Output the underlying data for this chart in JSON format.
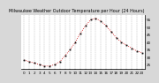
{
  "title": "Milwaukee Weather Outdoor Temperature per Hour (24 Hours)",
  "hours": [
    0,
    1,
    2,
    3,
    4,
    5,
    6,
    7,
    8,
    9,
    10,
    11,
    12,
    13,
    14,
    15,
    16,
    17,
    18,
    19,
    20,
    21,
    22,
    23
  ],
  "temps": [
    28,
    27,
    26,
    25,
    24,
    24,
    25,
    27,
    31,
    35,
    40,
    46,
    51,
    55,
    56,
    54,
    51,
    47,
    43,
    40,
    38,
    36,
    34,
    33
  ],
  "line_color": "#cc0000",
  "marker_color": "#111111",
  "bg_color": "#d8d8d8",
  "plot_bg_color": "#ffffff",
  "grid_color": "#999999",
  "ylim": [
    22,
    58
  ],
  "yticks": [
    25,
    30,
    35,
    40,
    45,
    50,
    55
  ],
  "title_fontsize": 3.5,
  "tick_fontsize": 3.0
}
